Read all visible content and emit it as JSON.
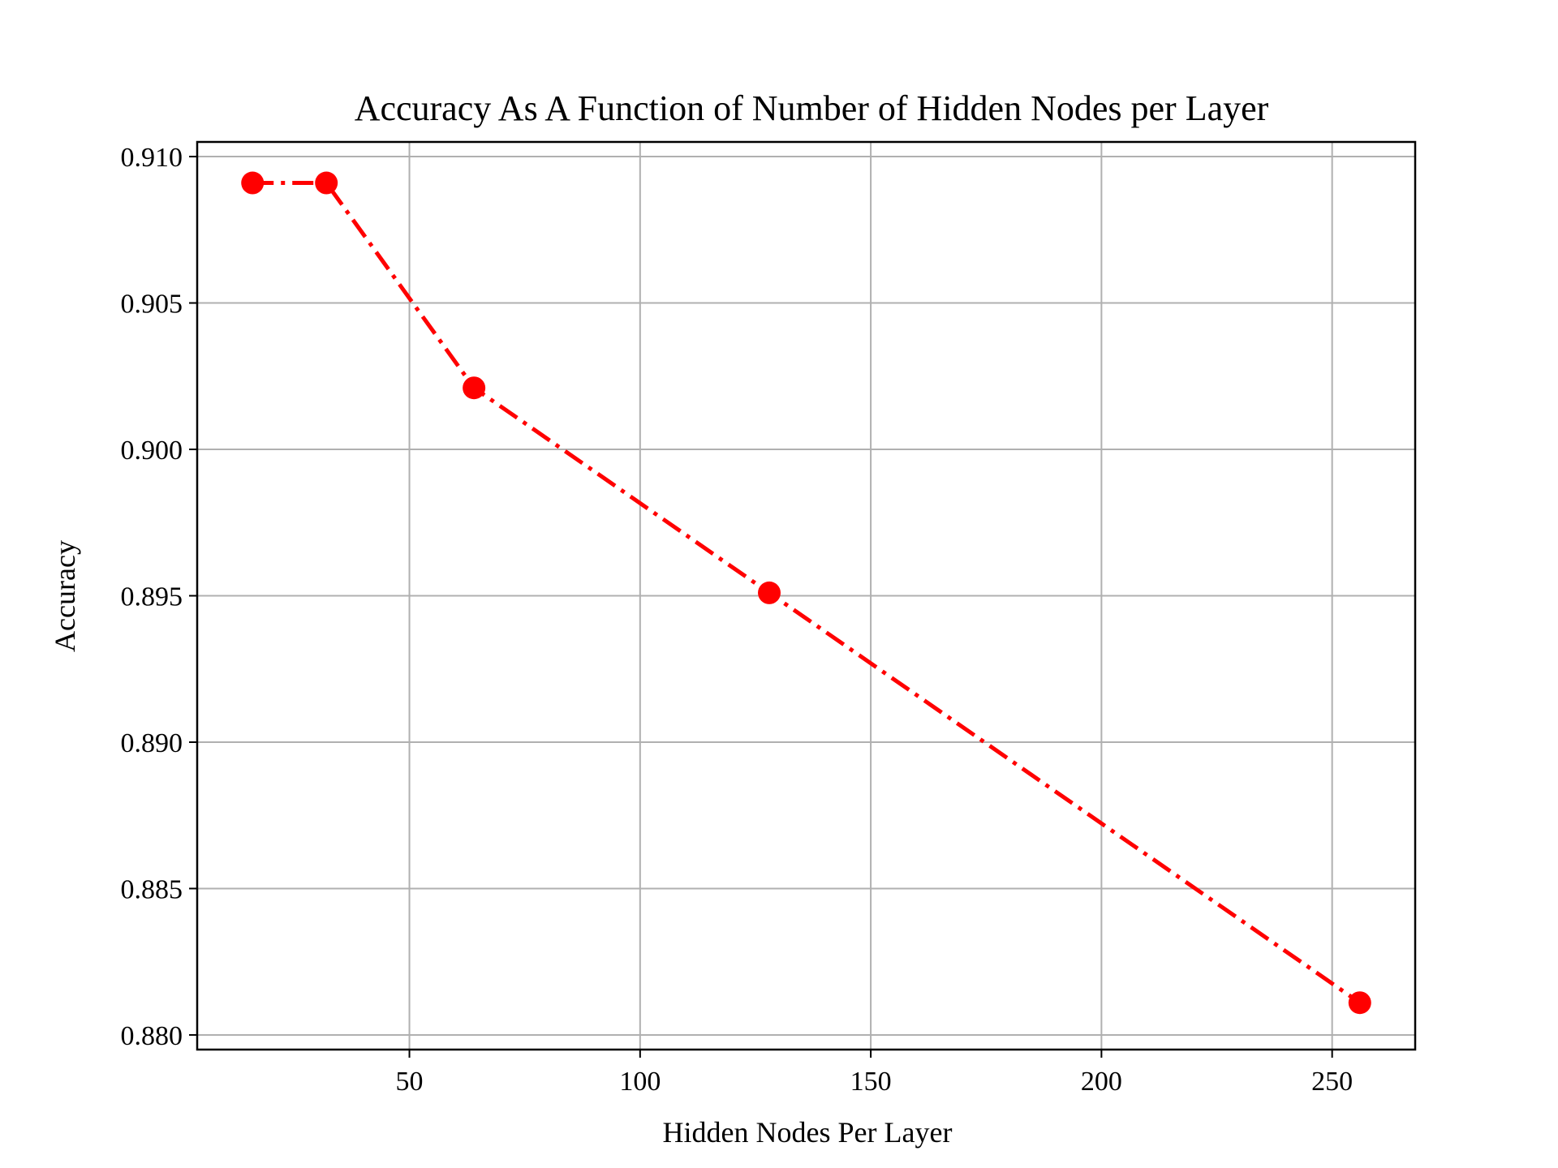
{
  "chart_data": {
    "type": "line",
    "title": "Accuracy As A Function of Number of Hidden Nodes per Layer",
    "xlabel": "Hidden Nodes Per Layer",
    "ylabel": "Accuracy",
    "xlim": [
      4,
      268
    ],
    "ylim": [
      0.8795,
      0.9105
    ],
    "x_ticks": [
      50,
      100,
      150,
      200,
      250
    ],
    "x_tick_labels": [
      "50",
      "100",
      "150",
      "200",
      "250"
    ],
    "y_ticks": [
      0.88,
      0.885,
      0.89,
      0.895,
      0.9,
      0.905,
      0.91
    ],
    "y_tick_labels": [
      "0.880",
      "0.885",
      "0.890",
      "0.895",
      "0.900",
      "0.905",
      "0.910"
    ],
    "grid": true,
    "series": [
      {
        "x": [
          16,
          32,
          64,
          128,
          256
        ],
        "values": [
          0.9091,
          0.9091,
          0.9021,
          0.8951,
          0.8811
        ],
        "color": "#ff0000",
        "line_style": "dash-dot",
        "marker": "circle"
      }
    ]
  }
}
